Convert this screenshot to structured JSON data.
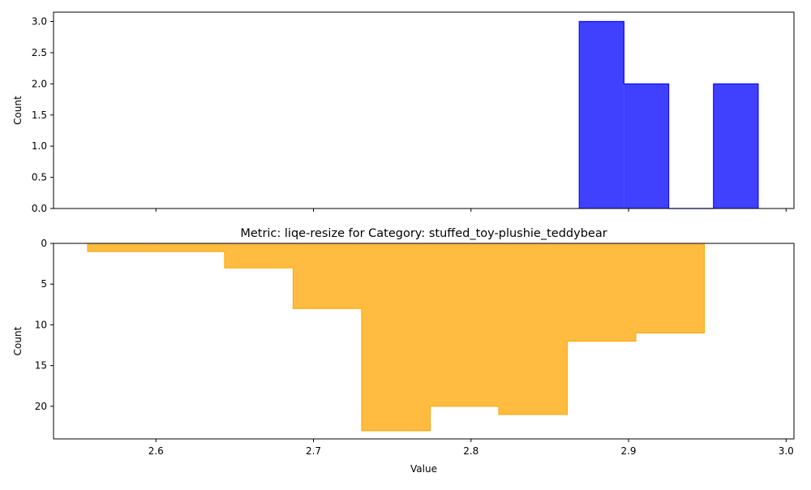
{
  "chart_data": [
    {
      "type": "histogram-step",
      "orientation": "upward",
      "title": "",
      "xlabel": "",
      "ylabel": "Count",
      "xlim": [
        2.535,
        3.005
      ],
      "ylim": [
        0,
        3.15
      ],
      "yticks": [
        0.0,
        0.5,
        1.0,
        1.5,
        2.0,
        2.5,
        3.0
      ],
      "ytick_labels": [
        "0.0",
        "0.5",
        "1.0",
        "1.5",
        "2.0",
        "2.5",
        "3.0"
      ],
      "xticks": [
        2.6,
        2.7,
        2.8,
        2.9,
        3.0
      ],
      "xtick_labels_visible": false,
      "color": "#0000ff",
      "bin_edges": [
        2.8687,
        2.8971,
        2.9255,
        2.9539,
        2.9823
      ],
      "counts": [
        3,
        2,
        0,
        2
      ],
      "grid": false
    },
    {
      "type": "histogram-step",
      "orientation": "inverted",
      "title": "Metric: liqe-resize for Category: stuffed_toy-plushie_teddybear",
      "xlabel": "Value",
      "ylabel": "Count",
      "xlim": [
        2.535,
        3.005
      ],
      "ylim": [
        0,
        24
      ],
      "yticks": [
        0,
        5,
        10,
        15,
        20
      ],
      "ytick_labels": [
        "0",
        "5",
        "10",
        "15",
        "20"
      ],
      "xticks": [
        2.6,
        2.7,
        2.8,
        2.9,
        3.0
      ],
      "xtick_labels": [
        "2.6",
        "2.7",
        "2.8",
        "2.9",
        "3.0"
      ],
      "color": "#ffa500",
      "bin_edges": [
        2.5566,
        2.6001,
        2.6436,
        2.6871,
        2.7306,
        2.7741,
        2.8176,
        2.8611,
        2.9046,
        2.9481
      ],
      "counts": [
        1,
        1,
        3,
        8,
        23,
        20,
        21,
        12,
        11
      ],
      "grid": false
    }
  ]
}
